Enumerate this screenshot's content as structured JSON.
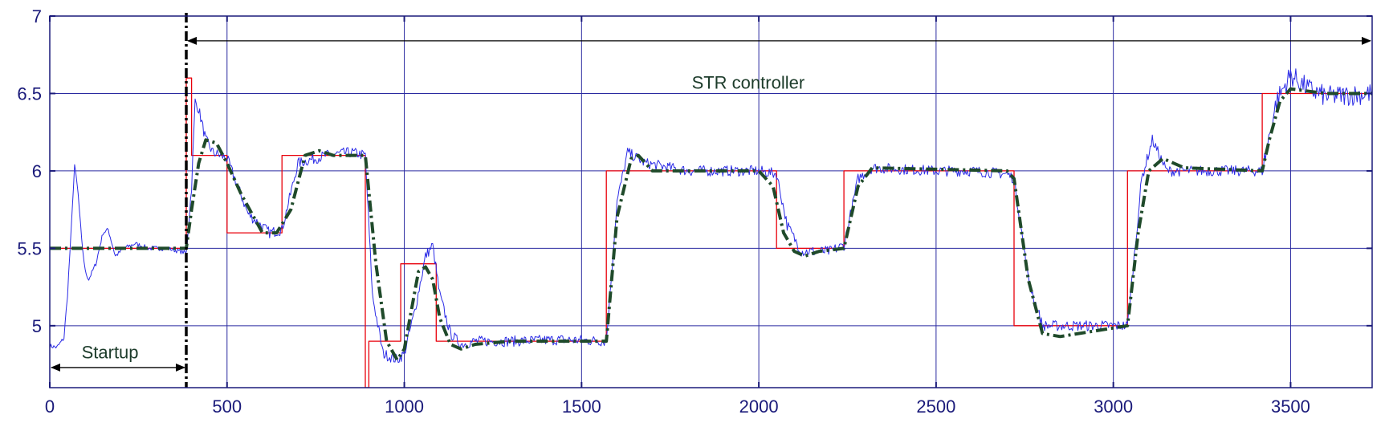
{
  "chart_data": {
    "type": "line",
    "title": "",
    "xlabel": "",
    "ylabel": "",
    "xlim": [
      0,
      3730
    ],
    "ylim": [
      4.6,
      7.0
    ],
    "x_ticks": [
      0,
      500,
      1000,
      1500,
      2000,
      2500,
      3000,
      3500
    ],
    "x_tick_labels": [
      "0",
      "500",
      "1000",
      "1500",
      "2000",
      "2500",
      "3000",
      "3500"
    ],
    "y_ticks": [
      5.0,
      5.5,
      6.0,
      6.5,
      7.0
    ],
    "y_tick_labels": [
      "5",
      "5.5",
      "6",
      "6.5",
      "7"
    ],
    "grid": true,
    "series": [
      {
        "color": "#e8000b",
        "style": "step",
        "x": [
          0,
          385,
          400,
          500,
          655,
          890,
          900,
          990,
          1090,
          1570,
          2050,
          2240,
          2720,
          3040,
          3420,
          3730
        ],
        "y": [
          5.5,
          6.6,
          6.1,
          5.6,
          6.1,
          4.6,
          4.9,
          5.4,
          4.9,
          6.0,
          5.5,
          6.0,
          5.0,
          6.0,
          6.5,
          6.5
        ]
      },
      {
        "color": "#2a2ae6",
        "style": "noisy",
        "x": [
          0,
          20,
          40,
          50,
          60,
          70,
          80,
          90,
          100,
          110,
          130,
          150,
          165,
          185,
          210,
          240,
          280,
          330,
          385,
          400,
          410,
          420,
          440,
          460,
          500,
          560,
          620,
          655,
          700,
          780,
          850,
          890,
          910,
          940,
          980,
          1000,
          1030,
          1060,
          1080,
          1100,
          1130,
          1160,
          1200,
          1300,
          1450,
          1570,
          1600,
          1630,
          1680,
          1800,
          2000,
          2050,
          2080,
          2120,
          2200,
          2240,
          2280,
          2320,
          2500,
          2600,
          2700,
          2720,
          2760,
          2800,
          2900,
          3040,
          3080,
          3110,
          3150,
          3300,
          3420,
          3460,
          3500,
          3550,
          3600,
          3730
        ],
        "y": [
          4.87,
          4.86,
          4.92,
          5.2,
          5.6,
          6.04,
          5.85,
          5.55,
          5.35,
          5.3,
          5.4,
          5.6,
          5.62,
          5.45,
          5.5,
          5.53,
          5.5,
          5.5,
          5.47,
          5.9,
          6.45,
          6.4,
          6.2,
          6.12,
          6.08,
          5.72,
          5.6,
          5.62,
          6.05,
          6.1,
          6.12,
          6.1,
          5.2,
          4.82,
          4.78,
          4.82,
          5.1,
          5.45,
          5.52,
          5.2,
          4.95,
          4.88,
          4.9,
          4.9,
          4.91,
          4.9,
          5.8,
          6.12,
          6.05,
          6.0,
          6.0,
          5.98,
          5.65,
          5.48,
          5.48,
          5.52,
          5.95,
          6.02,
          6.0,
          6.0,
          5.98,
          5.95,
          5.3,
          5.0,
          5.0,
          5.0,
          5.95,
          6.2,
          6.0,
          6.0,
          6.0,
          6.45,
          6.62,
          6.53,
          6.48,
          6.5
        ]
      },
      {
        "color": "#1f4a2a",
        "style": "dash-dot",
        "x": [
          0,
          385,
          400,
          420,
          440,
          470,
          500,
          540,
          600,
          640,
          680,
          720,
          760,
          800,
          890,
          920,
          950,
          980,
          1000,
          1020,
          1040,
          1060,
          1080,
          1100,
          1130,
          1160,
          1200,
          1300,
          1570,
          1600,
          1640,
          1660,
          1700,
          2000,
          2040,
          2070,
          2100,
          2130,
          2170,
          2240,
          2280,
          2320,
          2700,
          2720,
          2760,
          2800,
          2850,
          3040,
          3070,
          3100,
          3140,
          3200,
          3420,
          3440,
          3470,
          3500,
          3600,
          3730
        ],
        "y": [
          5.5,
          5.5,
          5.75,
          6.05,
          6.2,
          6.18,
          6.05,
          5.85,
          5.6,
          5.6,
          5.75,
          6.1,
          6.13,
          6.1,
          6.1,
          5.4,
          4.9,
          4.78,
          4.85,
          5.1,
          5.35,
          5.38,
          5.3,
          5.05,
          4.88,
          4.85,
          4.88,
          4.9,
          4.9,
          5.7,
          6.08,
          6.1,
          6.0,
          6.0,
          5.9,
          5.6,
          5.48,
          5.45,
          5.48,
          5.5,
          5.9,
          6.02,
          6.0,
          5.95,
          5.3,
          4.95,
          4.93,
          5.0,
          5.6,
          6.0,
          6.08,
          6.02,
          6.0,
          6.2,
          6.45,
          6.53,
          6.5,
          6.5
        ]
      }
    ],
    "annotations": [
      {
        "text": "Startup",
        "x": 170,
        "y": 4.79
      },
      {
        "text": "STR controller",
        "x": 1970,
        "y": 6.53
      }
    ],
    "vertical_marker": {
      "x": 385,
      "color": "#000000",
      "style": "dash-dot"
    },
    "arrows": [
      {
        "from": [
          0,
          4.73
        ],
        "to": [
          385,
          4.73
        ]
      },
      {
        "from": [
          385,
          6.84
        ],
        "to": [
          3730,
          6.84
        ]
      }
    ]
  }
}
